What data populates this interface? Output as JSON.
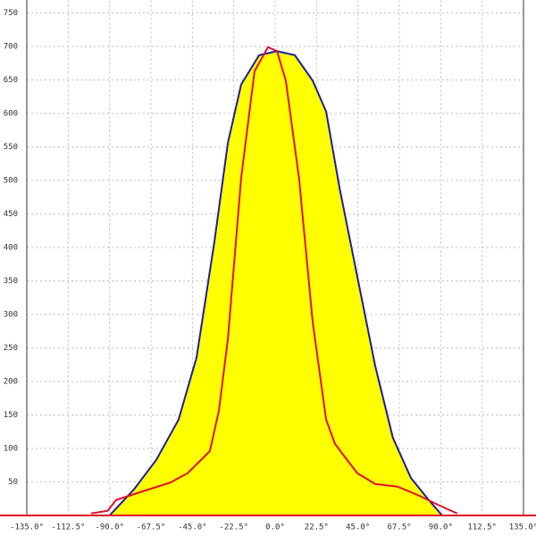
{
  "chart_data": {
    "type": "line",
    "xlim": [
      -135,
      135
    ],
    "ylim": [
      0,
      750
    ],
    "xticks": [
      {
        "value": -135,
        "label": "-135.0°"
      },
      {
        "value": -112.5,
        "label": "-112.5°"
      },
      {
        "value": -90,
        "label": "-90.0°"
      },
      {
        "value": -67.5,
        "label": "-67.5°"
      },
      {
        "value": -45,
        "label": "-45.0°"
      },
      {
        "value": -22.5,
        "label": "-22.5°"
      },
      {
        "value": 0,
        "label": "0.0°"
      },
      {
        "value": 22.5,
        "label": "22.5°"
      },
      {
        "value": 45,
        "label": "45.0°"
      },
      {
        "value": 67.5,
        "label": "67.5°"
      },
      {
        "value": 90,
        "label": "90.0°"
      },
      {
        "value": 112.5,
        "label": "112.5°"
      },
      {
        "value": 135,
        "label": "135.0°"
      }
    ],
    "yticks": [
      50,
      100,
      150,
      200,
      250,
      300,
      350,
      400,
      450,
      500,
      550,
      600,
      650,
      700,
      750
    ],
    "grid": true,
    "series": [
      {
        "color": "#1c1ca0",
        "fill": "#ffff00",
        "x": [
          -90,
          -76.7,
          -64.6,
          -52.5,
          -42.7,
          -33,
          -25.7,
          -18.5,
          -8.7,
          1,
          10.7,
          20.4,
          27.7,
          35,
          44.7,
          54.4,
          64,
          73.8,
          83.5,
          90.8
        ],
        "values": [
          0,
          39,
          83,
          143,
          236,
          409,
          556,
          643,
          687,
          693,
          687,
          649,
          603,
          489,
          356,
          223,
          116,
          56,
          23,
          0
        ]
      },
      {
        "color": "#e0102a",
        "x": [
          -100,
          -91,
          -86.5,
          -72,
          -57,
          -47.6,
          -35.5,
          -30.6,
          -25.7,
          -18.5,
          -11.2,
          -3.9,
          1,
          5.8,
          13,
          20.4,
          27.7,
          32.5,
          37.4,
          44.7,
          54.4,
          66.5,
          78.7,
          88.4,
          95.7,
          99
        ],
        "values": [
          3,
          7,
          23,
          36,
          49,
          63,
          96,
          156,
          263,
          503,
          663,
          699,
          693,
          649,
          503,
          289,
          143,
          107,
          89,
          63,
          47,
          43,
          29,
          16,
          7,
          3
        ]
      }
    ]
  }
}
